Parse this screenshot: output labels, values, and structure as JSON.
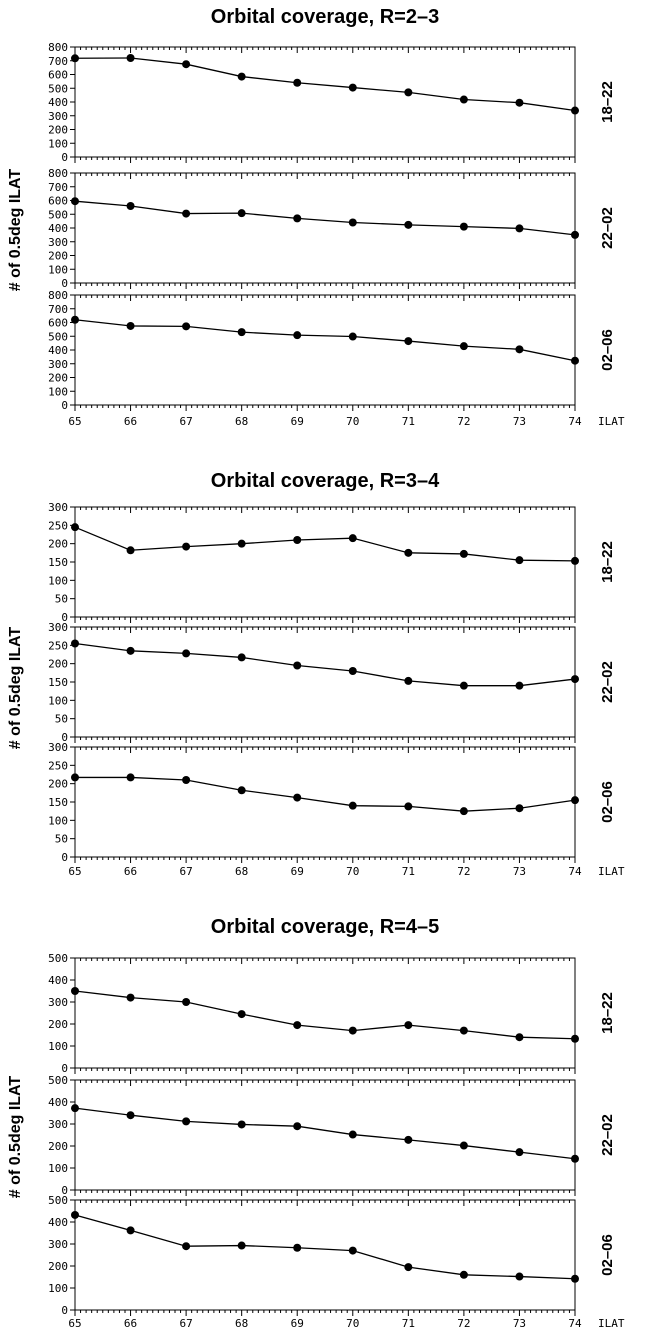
{
  "chart_data": [
    {
      "type": "line",
      "title": "Orbital coverage, R=2–3",
      "ylabel": "# of 0.5deg ILAT",
      "xlabel": "ILAT",
      "x": [
        65,
        66,
        67,
        68,
        69,
        70,
        71,
        72,
        73,
        74
      ],
      "x_ticks": [
        "65",
        "66",
        "67",
        "68",
        "69",
        "70",
        "71",
        "72",
        "73",
        "74"
      ],
      "xlim": [
        65,
        74
      ],
      "ylim": [
        0,
        800
      ],
      "y_ticks": [
        "0",
        "100",
        "200",
        "300",
        "400",
        "500",
        "600",
        "700",
        "800"
      ],
      "grid": false,
      "panels": [
        {
          "label": "18–22",
          "values": [
            718,
            720,
            675,
            585,
            540,
            505,
            470,
            418,
            395,
            338
          ]
        },
        {
          "label": "22–02",
          "values": [
            595,
            560,
            505,
            508,
            470,
            440,
            423,
            410,
            397,
            350
          ]
        },
        {
          "label": "02–06",
          "values": [
            620,
            575,
            572,
            530,
            508,
            498,
            465,
            428,
            405,
            322
          ]
        }
      ]
    },
    {
      "type": "line",
      "title": "Orbital coverage, R=3–4",
      "ylabel": "# of 0.5deg ILAT",
      "xlabel": "ILAT",
      "x": [
        65,
        66,
        67,
        68,
        69,
        70,
        71,
        72,
        73,
        74
      ],
      "x_ticks": [
        "65",
        "66",
        "67",
        "68",
        "69",
        "70",
        "71",
        "72",
        "73",
        "74"
      ],
      "xlim": [
        65,
        74
      ],
      "ylim": [
        0,
        300
      ],
      "y_ticks": [
        "0",
        "50",
        "100",
        "150",
        "200",
        "250",
        "300"
      ],
      "grid": false,
      "panels": [
        {
          "label": "18–22",
          "values": [
            245,
            182,
            192,
            200,
            210,
            215,
            175,
            172,
            155,
            153
          ]
        },
        {
          "label": "22–02",
          "values": [
            255,
            235,
            228,
            217,
            195,
            180,
            153,
            140,
            140,
            158
          ]
        },
        {
          "label": "02–06",
          "values": [
            217,
            217,
            210,
            182,
            162,
            140,
            138,
            125,
            133,
            155
          ]
        }
      ]
    },
    {
      "type": "line",
      "title": "Orbital coverage, R=4–5",
      "ylabel": "# of 0.5deg ILAT",
      "xlabel": "ILAT",
      "x": [
        65,
        66,
        67,
        68,
        69,
        70,
        71,
        72,
        73,
        74
      ],
      "x_ticks": [
        "65",
        "66",
        "67",
        "68",
        "69",
        "70",
        "71",
        "72",
        "73",
        "74"
      ],
      "xlim": [
        65,
        74
      ],
      "ylim": [
        0,
        500
      ],
      "y_ticks": [
        "0",
        "100",
        "200",
        "300",
        "400",
        "500"
      ],
      "grid": false,
      "panels": [
        {
          "label": "18–22",
          "values": [
            350,
            320,
            300,
            245,
            195,
            170,
            195,
            170,
            140,
            133
          ]
        },
        {
          "label": "22–02",
          "values": [
            372,
            340,
            312,
            298,
            290,
            252,
            228,
            202,
            172,
            142
          ]
        },
        {
          "label": "02–06",
          "values": [
            432,
            362,
            290,
            293,
            283,
            270,
            195,
            160,
            152,
            142
          ]
        }
      ]
    }
  ],
  "colors": {
    "line": "#000000",
    "marker": "#000000",
    "background": "#ffffff"
  }
}
